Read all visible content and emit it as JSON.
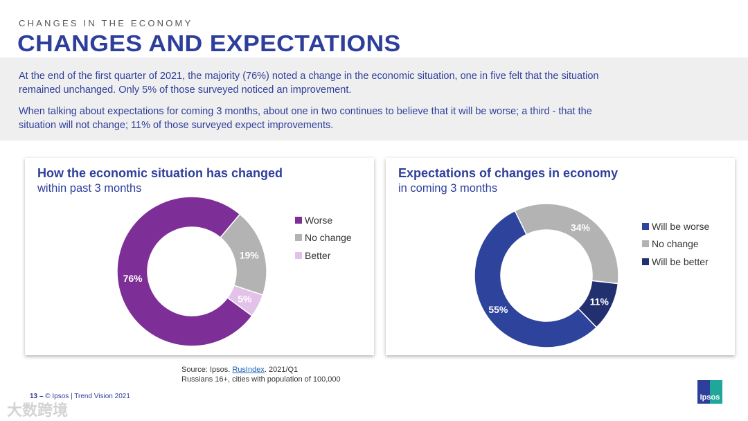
{
  "header": {
    "kicker": "CHANGES IN THE ECONOMY",
    "title": "CHANGES AND EXPECTATIONS"
  },
  "summary": [
    "At the end of the first quarter of 2021, the majority (76%) noted a change in the economic situation, one in five felt that the situation remained unchanged. Only 5% of those surveyed noticed an improvement.",
    "When talking about expectations for coming 3 months, about one in two continues to believe that it will be worse; a third - that the situation will not change; 11% of those surveyed expect improvements."
  ],
  "chart_data": [
    {
      "type": "pie",
      "title": "How the economic situation has changed",
      "subtitle": "within past 3 months",
      "legend_position": "right",
      "slices": [
        {
          "label": "Worse",
          "value": 76,
          "display": "76%",
          "color": "#7e2f97"
        },
        {
          "label": "No change",
          "value": 19,
          "display": "19%",
          "color": "#b3b3b3"
        },
        {
          "label": "Better",
          "value": 5,
          "display": "5%",
          "color": "#e3c2ea"
        }
      ],
      "draw_order": [
        1,
        2,
        0
      ],
      "start_deg": 40
    },
    {
      "type": "pie",
      "title": "Expectations of changes in economy",
      "subtitle": "in coming 3 months",
      "legend_position": "right",
      "slices": [
        {
          "label": "Will be worse",
          "value": 55,
          "display": "55%",
          "color": "#2e449c"
        },
        {
          "label": "No change",
          "value": 34,
          "display": "34%",
          "color": "#b3b3b3"
        },
        {
          "label": "Will be better",
          "value": 11,
          "display": "11%",
          "color": "#22306f"
        }
      ],
      "draw_order": [
        1,
        2,
        0
      ],
      "start_deg": -26
    }
  ],
  "source": {
    "prefix": "Source: Ipsos. ",
    "link": "RusIndex",
    "suffix": ". 2021/Q1",
    "line2": "Russians 16+, cities with population of 100,000"
  },
  "footer": {
    "page": "13 –",
    "text": "© Ipsos | Trend Vision 2021"
  },
  "logo": "Ipsos",
  "watermark": "大数跨境"
}
